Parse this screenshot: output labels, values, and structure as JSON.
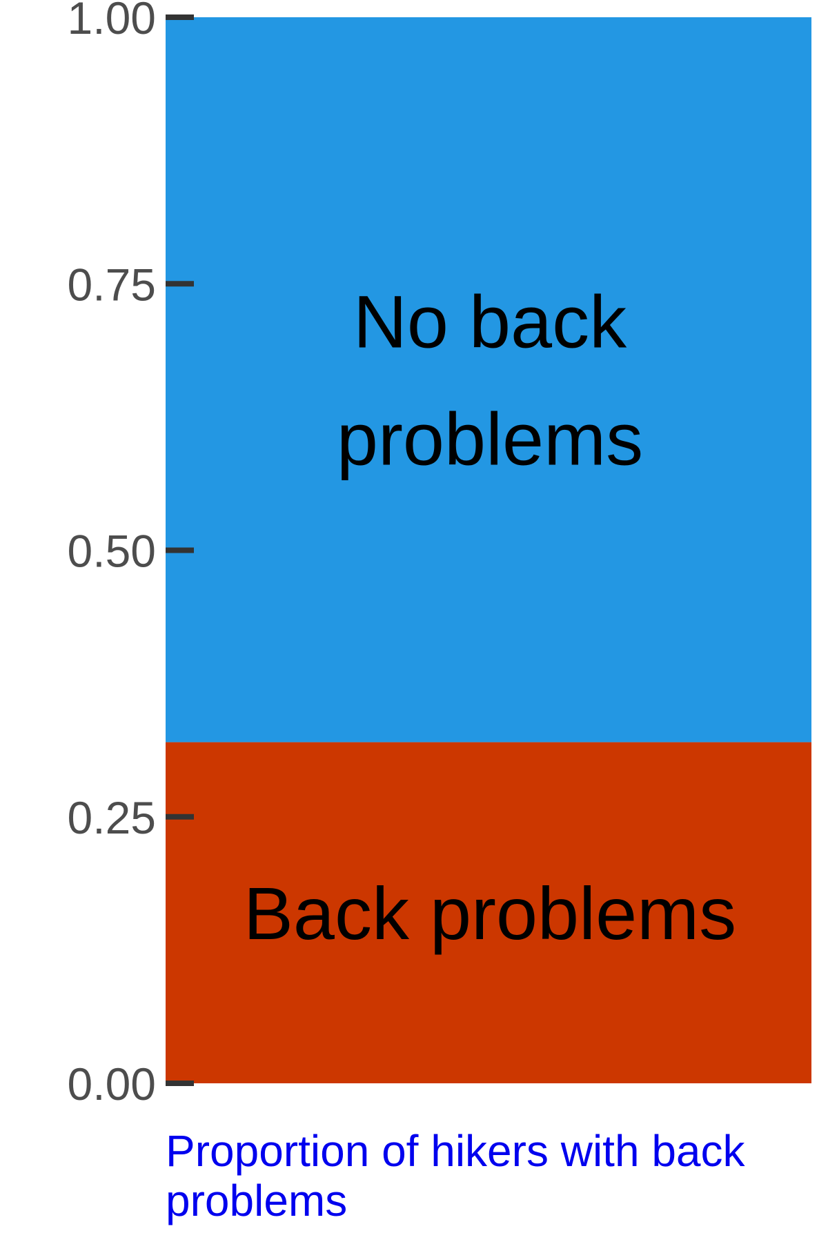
{
  "chart_data": {
    "type": "bar",
    "stacked": true,
    "orientation": "vertical",
    "caption": "Proportion of hikers with back problems",
    "xlabel": "",
    "ylabel": "",
    "ylim": [
      0,
      1
    ],
    "yticks": [
      "0.00",
      "0.25",
      "0.50",
      "0.75",
      "1.00"
    ],
    "ytick_values": [
      0,
      0.25,
      0.5,
      0.75,
      1
    ],
    "grid": false,
    "legend": "none",
    "series": [
      {
        "name": "Back problems",
        "label_lines": [
          "Back problems"
        ],
        "value": 0.32,
        "color": "#cc3700"
      },
      {
        "name": "No back problems",
        "label_lines": [
          "No back",
          "problems"
        ],
        "value": 0.68,
        "color": "#2397e3"
      }
    ]
  }
}
